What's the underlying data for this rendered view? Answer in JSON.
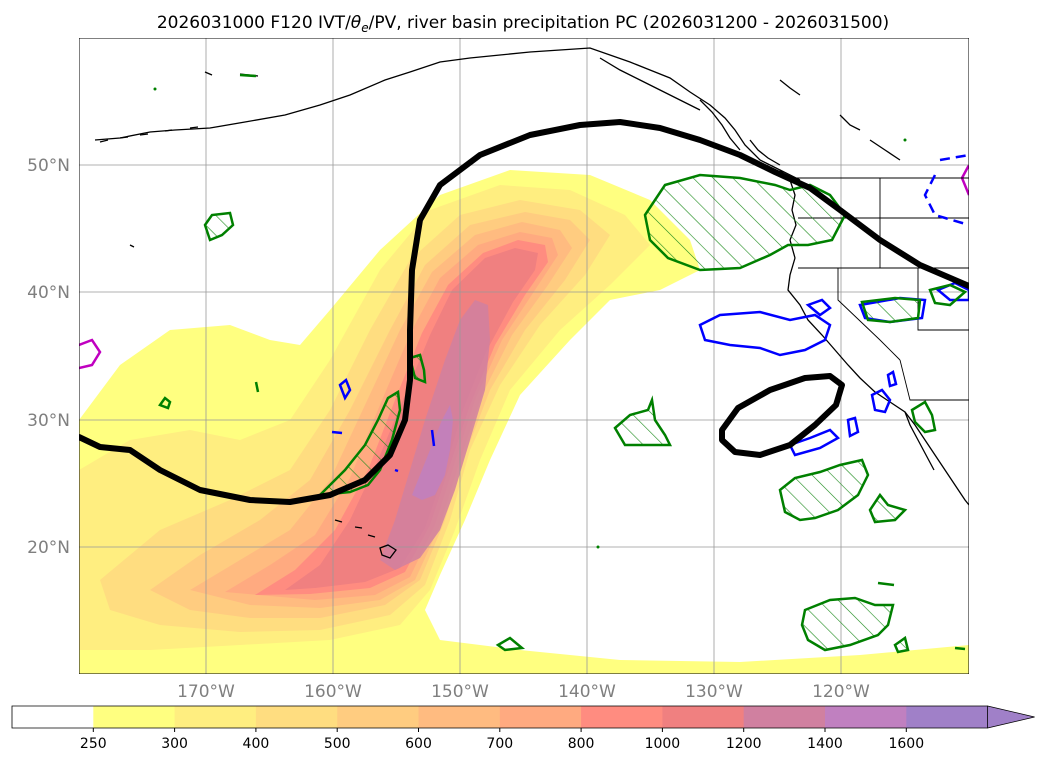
{
  "title": "2026031000 F120 IVT/θe/PV, river basin precipitation PC (2026031200 - 2026031500)",
  "title_parts": {
    "prefix": "2026031000 F120 IVT/",
    "theta": "θ",
    "theta_sub": "e",
    "suffix": "/PV, river basin precipitation PC (2026031200 - 2026031500)"
  },
  "map": {
    "projection": "PlateCarree",
    "lon_range": [
      -180,
      -110
    ],
    "lat_range": [
      10,
      60
    ],
    "lat_ticks": [
      {
        "value": 20,
        "label": "20°N"
      },
      {
        "value": 30,
        "label": "30°N"
      },
      {
        "value": 40,
        "label": "40°N"
      },
      {
        "value": 50,
        "label": "50°N"
      }
    ],
    "lon_ticks": [
      {
        "value": -170,
        "label": "170°W"
      },
      {
        "value": -160,
        "label": "160°W"
      },
      {
        "value": -150,
        "label": "150°W"
      },
      {
        "value": -140,
        "label": "140°W"
      },
      {
        "value": -130,
        "label": "130°W"
      },
      {
        "value": -120,
        "label": "120°W"
      }
    ],
    "layers": [
      {
        "name": "IVT filled contours",
        "color": "#ff8080"
      },
      {
        "name": "theta-e / PV thick contour",
        "color": "#000000"
      },
      {
        "name": "precipitation PC positive (hatched)",
        "color": "#008000"
      },
      {
        "name": "precipitation PC negative",
        "color": "#0000ff"
      },
      {
        "name": "coastlines and state borders",
        "color": "#000000"
      }
    ]
  },
  "colorbar": {
    "levels": [
      "250",
      "300",
      "400",
      "500",
      "600",
      "700",
      "800",
      "1000",
      "1200",
      "1400",
      "1600"
    ],
    "colors": [
      "#ffffff",
      "#ffff80",
      "#ffee80",
      "#ffdd80",
      "#ffcc80",
      "#ffbb80",
      "#ffaa80",
      "#ff8c80",
      "#f08080",
      "#d080a0",
      "#c080c0",
      "#a080c8"
    ],
    "extend": "max"
  }
}
